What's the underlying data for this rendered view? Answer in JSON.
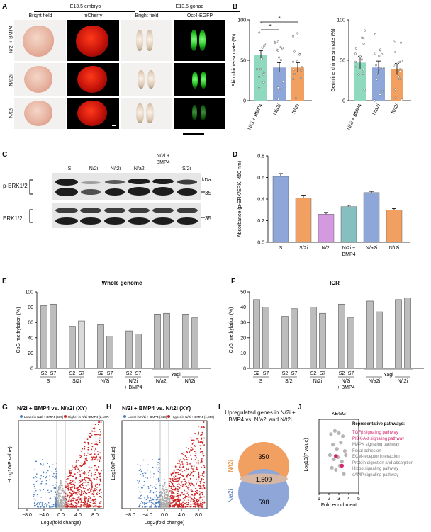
{
  "panels": {
    "A": {
      "letter": "A",
      "headers": {
        "embryo": "E13.5 embryo",
        "gonad": "E13.5 gonad",
        "bf1": "Bright field",
        "mcherry": "mCherry",
        "bf2": "Bright field",
        "oct4": "Oct4-EGFP"
      },
      "rows": [
        "N/2i + BMP4",
        "N/a2i",
        "N/t2i"
      ]
    },
    "B": {
      "letter": "B",
      "left": {
        "ylabel": "Skin chimerism rate (%)",
        "ticks": [
          "0",
          "50",
          "100"
        ],
        "sig": [
          "*",
          "*"
        ]
      },
      "right": {
        "ylabel": "Germline chimerism rate (%)",
        "ticks": [
          "0",
          "50",
          "100"
        ]
      },
      "groups": [
        "N/2i + BMP4",
        "N/a2i",
        "N/t2i"
      ]
    },
    "C": {
      "letter": "C",
      "lanes": [
        "S",
        "N/2i",
        "N/t2i",
        "N/a2i",
        "N/2i + BMP4",
        "S/2i"
      ],
      "lane_top_extra": "N/2i +",
      "lane_bmp4": "BMP4",
      "blots": [
        "p-ERK1/2",
        "ERK1/2"
      ],
      "kda_label": "kDa",
      "kda": "35"
    },
    "D": {
      "letter": "D",
      "ylabel": "Absorbance (p-ERK/ERK, 450 nm)",
      "ticks": [
        "0.0",
        "0.2",
        "0.4",
        "0.6",
        "0.8"
      ],
      "categories": [
        "S",
        "S/2i",
        "N/2i",
        "N/2i + BMP4",
        "N/a2i",
        "N/t2i"
      ]
    },
    "E": {
      "letter": "E",
      "title": "Whole genome",
      "ylabel": "CpG methylation (%)",
      "ticks": [
        "0",
        "20",
        "40",
        "60",
        "80",
        "100"
      ],
      "yagi": "Yagi"
    },
    "F": {
      "letter": "F",
      "title": "ICR",
      "ylabel": "CpG methylation (%)",
      "ticks": [
        "0",
        "10",
        "20",
        "30",
        "40",
        "50"
      ],
      "yagi": "Yagi"
    },
    "G": {
      "letter": "G",
      "title": "N/2i + BMP4 vs. N/a2i (XY)",
      "legend_low": "Lower in N/2i + BMP4 (",
      "legend_low_n": "505",
      "legend_high": "Higher in N/2i+BMP4 (",
      "legend_high_n": "2,107"
    },
    "H": {
      "letter": "H",
      "title": "N/2i + BMP4 vs. N/t2i (XY)",
      "legend_low": "Lower in N/2i + BMP4 (",
      "legend_low_n": "413",
      "legend_high": "Higher in N/2i + BMP4 (",
      "legend_high_n": "1,859"
    },
    "volcano_axes": {
      "xlabel": "Log2(fold change)",
      "ylabel": "−Log10(P value)",
      "xticks": [
        "−8.0",
        "−4.0",
        "0.0",
        "4.0",
        "8.0"
      ]
    },
    "I": {
      "letter": "I",
      "title": "Upregulated genes in N/2i + BMP4 vs. N/a2i and N/t2i",
      "top_label": "N/t2i",
      "bottom_label": "N/a2i",
      "top_only": "350",
      "overlap": "1,509",
      "bottom_only": "598"
    },
    "J": {
      "letter": "J",
      "title": "KEGG",
      "xlabel": "Fold enrichment",
      "ylabel": "−Log10(P value)",
      "xticks": [
        "1",
        "2",
        "3",
        "4",
        "5"
      ],
      "pathways_header": "Representative pathways:",
      "pathways": [
        "TGFβ signaling pathway",
        "PI3K-Akt signaling pathway",
        "MAPK signaling pathway",
        "Focal adhesion",
        "ECM-receptor interaction",
        "Protein digestion and absorption",
        "Hippo signaling pathway",
        "cAMP signaling pathway"
      ],
      "highlight_color": "#d6246e"
    }
  },
  "colors": {
    "blue": "#8ea7d8",
    "orange": "#f1a062",
    "green": "#8fd9bf",
    "purple": "#d49ae0",
    "teal": "#85bfc0",
    "lime": "#b5e0a4",
    "red": "#cc2222",
    "vblue": "#4b7fc2",
    "grey": "#bdbdbd"
  },
  "chart_data": [
    {
      "type": "bar",
      "panel": "B-left",
      "ylabel": "Skin chimerism rate (%)",
      "ylim": [
        0,
        100
      ],
      "categories": [
        "N/2i + BMP4",
        "N/a2i",
        "N/t2i"
      ],
      "values": [
        57,
        41,
        41
      ],
      "errors": [
        5,
        6,
        6
      ],
      "colors": [
        "#8fd9bf",
        "#8ea7d8",
        "#f1a062"
      ]
    },
    {
      "type": "bar",
      "panel": "B-right",
      "ylabel": "Germline chimerism rate (%)",
      "ylim": [
        0,
        100
      ],
      "categories": [
        "N/2i + BMP4",
        "N/a2i",
        "N/t2i"
      ],
      "values": [
        47,
        41,
        39
      ],
      "errors": [
        8,
        8,
        7
      ],
      "colors": [
        "#8fd9bf",
        "#8ea7d8",
        "#f1a062"
      ]
    },
    {
      "type": "bar",
      "panel": "D",
      "ylabel": "Absorbance (p-ERK/ERK, 450 nm)",
      "ylim": [
        0,
        0.8
      ],
      "categories": [
        "S",
        "S/2i",
        "N/2i",
        "N/2i + BMP4",
        "N/a2i",
        "N/t2i"
      ],
      "values": [
        0.61,
        0.41,
        0.26,
        0.33,
        0.46,
        0.3
      ],
      "errors": [
        0.02,
        0.02,
        0.01,
        0.005,
        0.005,
        0.005
      ],
      "colors": [
        "#8ea7d8",
        "#f1a062",
        "#d49ae0",
        "#85bfc0",
        "#8ea7d8",
        "#f1a062"
      ]
    },
    {
      "type": "bar",
      "panel": "E",
      "title": "Whole genome",
      "ylabel": "CpG methylation (%)",
      "ylim": [
        0,
        100
      ],
      "tick_labels": [
        "S2",
        "S7",
        "S2",
        "S7",
        "S2",
        "S7",
        "S2",
        "S7",
        "",
        "",
        "",
        ""
      ],
      "groups": [
        "S",
        "S/2i",
        "N/2i",
        "N/2i + BMP4",
        "N/a2i",
        "N/t2i"
      ],
      "values": [
        82,
        84,
        55,
        62,
        57,
        42,
        49,
        45,
        71,
        72,
        71,
        66
      ]
    },
    {
      "type": "bar",
      "panel": "F",
      "title": "ICR",
      "ylabel": "CpG methylation (%)",
      "ylim": [
        0,
        50
      ],
      "tick_labels": [
        "S2",
        "S7",
        "S2",
        "S7",
        "S2",
        "S7",
        "S2",
        "S7",
        "",
        "",
        "",
        ""
      ],
      "groups": [
        "S",
        "S/2i",
        "N/2i",
        "N/2i + BMP4",
        "N/a2i",
        "N/t2i"
      ],
      "values": [
        45,
        40,
        34,
        39,
        40,
        36,
        42,
        33,
        44,
        37,
        45,
        46
      ]
    },
    {
      "type": "scatter",
      "panel": "J",
      "title": "KEGG",
      "xlabel": "Fold enrichment",
      "ylabel": "−Log10(P value)",
      "xlim": [
        1,
        5
      ],
      "points": [
        [
          2.2,
          8.6
        ],
        [
          2.6,
          8.9
        ],
        [
          3.0,
          8.7
        ],
        [
          3.4,
          8.4
        ],
        [
          2.4,
          7.6
        ],
        [
          2.8,
          7.2
        ],
        [
          3.2,
          7.8
        ],
        [
          3.6,
          7.0
        ],
        [
          2.1,
          6.6
        ],
        [
          2.5,
          6.2
        ],
        [
          2.9,
          6.4
        ],
        [
          3.3,
          6.0
        ],
        [
          3.7,
          6.6
        ],
        [
          2.3,
          5.4
        ],
        [
          2.7,
          5.2
        ],
        [
          3.1,
          5.6
        ],
        [
          3.5,
          4.8
        ]
      ],
      "highlighted": [
        [
          2.7,
          6.5
        ],
        [
          3.3,
          5.6
        ]
      ]
    }
  ]
}
